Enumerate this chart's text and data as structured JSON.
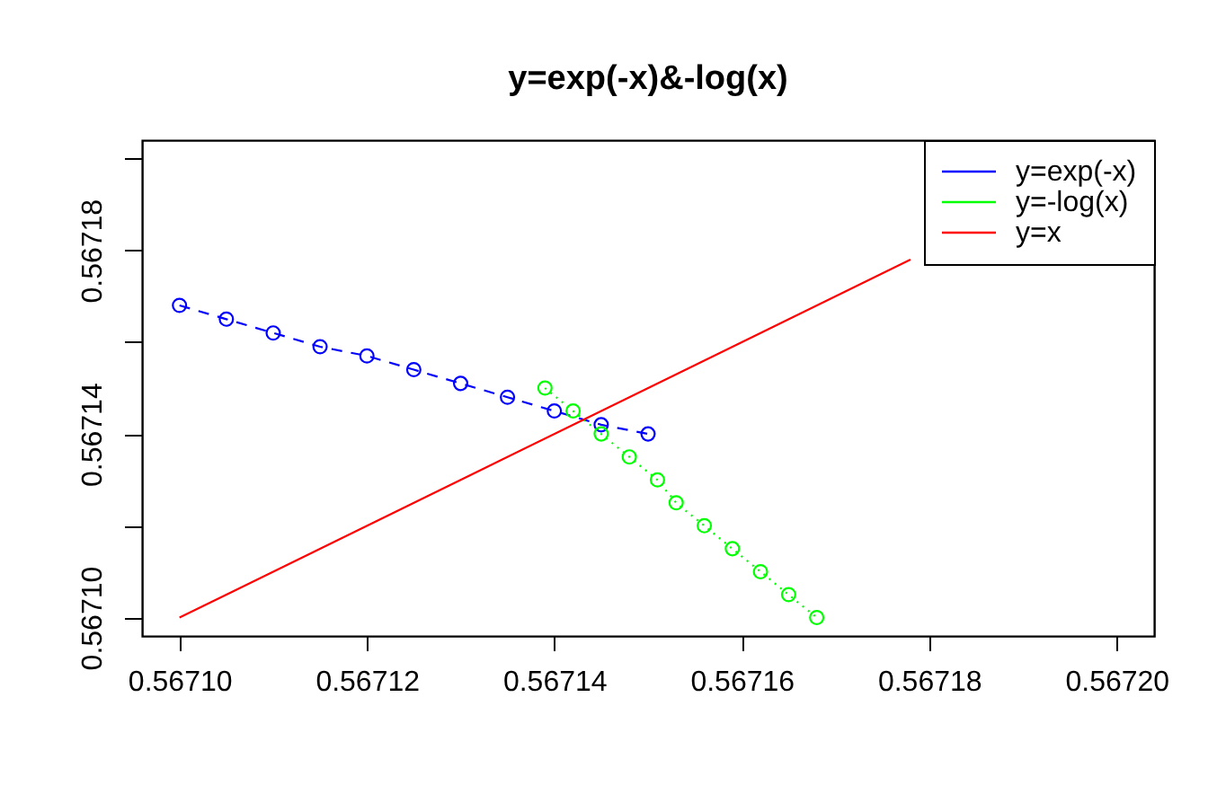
{
  "chart_data": {
    "type": "line",
    "title": "y=exp(-x)&-log(x)",
    "xlim": [
      0.567096,
      0.567204
    ],
    "ylim": [
      0.567096,
      0.567204
    ],
    "xticks": [
      {
        "value": 0.5671,
        "label": "0.56710"
      },
      0.56712,
      0.56714,
      0.56716,
      0.56718,
      {
        "value": 0.5672,
        "label": "0.56720"
      }
    ],
    "yticks": [
      {
        "value": 0.5671,
        "label": "0.56710"
      },
      {
        "value": 0.56712,
        "label": null
      },
      0.56714,
      {
        "value": 0.56716,
        "label": null
      },
      0.56718,
      {
        "value": 0.5672,
        "label": null
      }
    ],
    "legend": "top right",
    "series": [
      {
        "name": "y=exp(-x)",
        "color": "#0000ff",
        "marker": "circle",
        "line_style": "dashed",
        "x": [
          0.5671,
          0.567105,
          0.56711,
          0.567115,
          0.56712,
          0.567125,
          0.56713,
          0.567135,
          0.56714,
          0.567145,
          0.56715
        ],
        "values": [
          0.567168,
          0.567165,
          0.567162,
          0.567159,
          0.567157,
          0.567154,
          0.567151,
          0.567148,
          0.567145,
          0.567142,
          0.56714
        ]
      },
      {
        "name": "y=-log(x)",
        "color": "#00ff00",
        "marker": "circle",
        "line_style": "dotted",
        "x": [
          0.567139,
          0.567142,
          0.567145,
          0.567148,
          0.567151,
          0.567153,
          0.567156,
          0.567159,
          0.567162,
          0.567165,
          0.567168
        ],
        "values": [
          0.56715,
          0.567145,
          0.56714,
          0.567135,
          0.56713,
          0.567125,
          0.56712,
          0.567115,
          0.56711,
          0.567105,
          0.5671
        ]
      },
      {
        "name": "y=x",
        "color": "#ff0000",
        "marker": "none",
        "line_style": "solid",
        "x": [
          0.5671,
          0.567178
        ],
        "values": [
          0.5671,
          0.567178
        ]
      }
    ]
  }
}
